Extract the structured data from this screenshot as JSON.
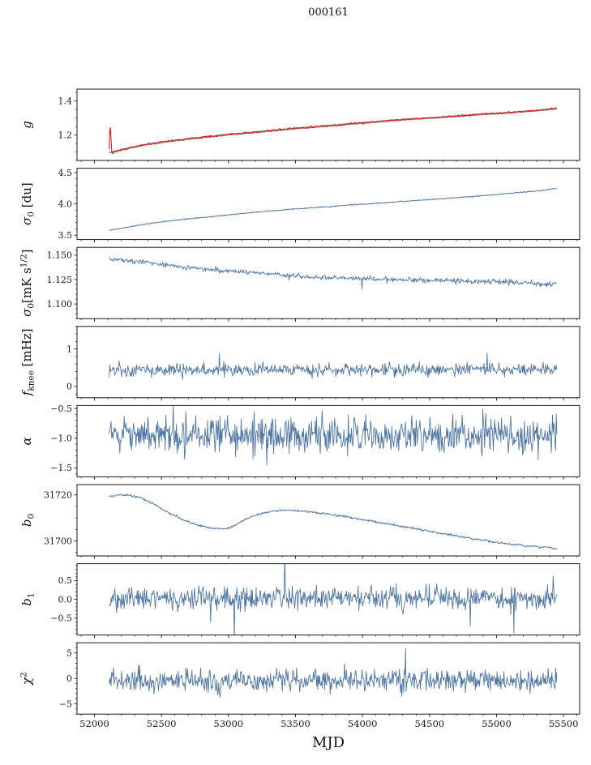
{
  "chart_data": {
    "type": "line",
    "title": "000161",
    "xlabel": "MJD",
    "xlim": [
      51870,
      55620
    ],
    "xticks": [
      52000,
      52500,
      53000,
      53500,
      54000,
      54500,
      55000,
      55500
    ],
    "xtick_labels": [
      "52000",
      "52500",
      "53000",
      "53500",
      "54000",
      "54500",
      "55000",
      "55500"
    ],
    "x_minor_step": 100,
    "x_range_data": [
      52110,
      55450
    ],
    "axis_color": "#1a1a1a",
    "line_color": "#5077a3",
    "panels": [
      {
        "id": "g",
        "ylabel": [
          {
            "t": "g",
            "i": true
          }
        ],
        "ylim": [
          1.05,
          1.47
        ],
        "yticks": [
          1.2,
          1.4
        ],
        "ytick_labels": [
          "1.2",
          "1.4"
        ],
        "yminor_step": 0.05,
        "series": [
          {
            "name": "smoothed-gain",
            "color": "#9a9a9a",
            "width": 2.2,
            "noise": 0.0006,
            "n": 360,
            "seed": 21,
            "trend": [
              [
                52110,
                1.097
              ],
              [
                52200,
                1.113
              ],
              [
                52300,
                1.13
              ],
              [
                52400,
                1.145
              ],
              [
                52500,
                1.157
              ],
              [
                52600,
                1.167
              ],
              [
                52700,
                1.176
              ],
              [
                52800,
                1.185
              ],
              [
                52900,
                1.194
              ],
              [
                53000,
                1.202
              ],
              [
                53100,
                1.209
              ],
              [
                53200,
                1.216
              ],
              [
                53300,
                1.223
              ],
              [
                53400,
                1.231
              ],
              [
                53500,
                1.238
              ],
              [
                53600,
                1.244
              ],
              [
                53700,
                1.251
              ],
              [
                53800,
                1.257
              ],
              [
                53900,
                1.264
              ],
              [
                54000,
                1.271
              ],
              [
                54100,
                1.277
              ],
              [
                54200,
                1.284
              ],
              [
                54300,
                1.29
              ],
              [
                54400,
                1.295
              ],
              [
                54500,
                1.3
              ],
              [
                54600,
                1.305
              ],
              [
                54700,
                1.311
              ],
              [
                54800,
                1.316
              ],
              [
                54900,
                1.322
              ],
              [
                55000,
                1.327
              ],
              [
                55100,
                1.331
              ],
              [
                55200,
                1.338
              ],
              [
                55300,
                1.344
              ],
              [
                55380,
                1.35
              ],
              [
                55450,
                1.356
              ]
            ]
          },
          {
            "name": "gain",
            "color": "#d62020",
            "width": 1.1,
            "noise": 0.0028,
            "n": 720,
            "seed": 22,
            "trend": [
              [
                52110,
                1.118
              ],
              [
                52117,
                1.285
              ],
              [
                52123,
                1.185
              ],
              [
                52130,
                1.096
              ],
              [
                52200,
                1.112
              ],
              [
                52300,
                1.131
              ],
              [
                52400,
                1.146
              ],
              [
                52500,
                1.158
              ],
              [
                52600,
                1.168
              ],
              [
                52700,
                1.177
              ],
              [
                52800,
                1.186
              ],
              [
                52900,
                1.195
              ],
              [
                53000,
                1.203
              ],
              [
                53100,
                1.21
              ],
              [
                53200,
                1.217
              ],
              [
                53300,
                1.224
              ],
              [
                53400,
                1.232
              ],
              [
                53500,
                1.239
              ],
              [
                53600,
                1.245
              ],
              [
                53700,
                1.252
              ],
              [
                53800,
                1.258
              ],
              [
                53900,
                1.265
              ],
              [
                54000,
                1.272
              ],
              [
                54100,
                1.278
              ],
              [
                54200,
                1.285
              ],
              [
                54300,
                1.291
              ],
              [
                54400,
                1.296
              ],
              [
                54500,
                1.301
              ],
              [
                54600,
                1.306
              ],
              [
                54700,
                1.312
              ],
              [
                54800,
                1.317
              ],
              [
                54900,
                1.323
              ],
              [
                55000,
                1.328
              ],
              [
                55100,
                1.332
              ],
              [
                55200,
                1.339
              ],
              [
                55300,
                1.345
              ],
              [
                55380,
                1.351
              ],
              [
                55450,
                1.357
              ]
            ]
          }
        ]
      },
      {
        "id": "sigma0-du",
        "ylabel": [
          {
            "t": "σ",
            "i": true
          },
          {
            "t": "0",
            "pos": "sub"
          },
          {
            "t": " [du]"
          }
        ],
        "ylim": [
          3.43,
          4.57
        ],
        "yticks": [
          3.5,
          4.0,
          4.5
        ],
        "ytick_labels": [
          "3.5",
          "4.0",
          "4.5"
        ],
        "yminor_step": 0.1,
        "series": [
          {
            "name": "sigma0-du",
            "color": "#5077a3",
            "width": 1.0,
            "noise": 0.004,
            "n": 700,
            "seed": 31,
            "trend": [
              [
                52110,
                3.575
              ],
              [
                52250,
                3.63
              ],
              [
                52400,
                3.685
              ],
              [
                52550,
                3.725
              ],
              [
                52700,
                3.76
              ],
              [
                52850,
                3.79
              ],
              [
                53000,
                3.825
              ],
              [
                53150,
                3.855
              ],
              [
                53300,
                3.885
              ],
              [
                53450,
                3.91
              ],
              [
                53600,
                3.935
              ],
              [
                53800,
                3.965
              ],
              [
                54000,
                3.995
              ],
              [
                54200,
                4.025
              ],
              [
                54400,
                4.055
              ],
              [
                54600,
                4.085
              ],
              [
                54800,
                4.115
              ],
              [
                55000,
                4.15
              ],
              [
                55200,
                4.19
              ],
              [
                55320,
                4.21
              ],
              [
                55450,
                4.25
              ]
            ]
          }
        ]
      },
      {
        "id": "sigma0-mks",
        "ylabel": [
          {
            "t": "σ",
            "i": true
          },
          {
            "t": "0",
            "pos": "sub"
          },
          {
            "t": "[mK s"
          },
          {
            "t": "1/2",
            "pos": "sup"
          },
          {
            "t": "]"
          }
        ],
        "ylim": [
          1.085,
          1.158
        ],
        "yticks": [
          1.1,
          1.125,
          1.15
        ],
        "ytick_labels": [
          "1.100",
          "1.125",
          "1.150"
        ],
        "yminor_step": 0.005,
        "series": [
          {
            "name": "sigma0-mks",
            "color": "#5077a3",
            "width": 0.9,
            "noise": 0.0013,
            "n": 720,
            "seed": 41,
            "spike_prob": 0.008,
            "spike_scale": 5,
            "spike_dir": -1,
            "trend": [
              [
                52110,
                1.1465
              ],
              [
                52250,
                1.1445
              ],
              [
                52400,
                1.1425
              ],
              [
                52550,
                1.1395
              ],
              [
                52700,
                1.137
              ],
              [
                52850,
                1.1355
              ],
              [
                53000,
                1.134
              ],
              [
                53150,
                1.1325
              ],
              [
                53300,
                1.131
              ],
              [
                53450,
                1.1295
              ],
              [
                53600,
                1.128
              ],
              [
                53800,
                1.127
              ],
              [
                54000,
                1.1262
              ],
              [
                54200,
                1.1252
              ],
              [
                54400,
                1.1245
              ],
              [
                54600,
                1.1238
              ],
              [
                54800,
                1.1232
              ],
              [
                55000,
                1.1228
              ],
              [
                55200,
                1.1215
              ],
              [
                55350,
                1.1212
              ],
              [
                55450,
                1.1215
              ]
            ]
          }
        ]
      },
      {
        "id": "fknee",
        "ylabel": [
          {
            "t": "f",
            "i": true
          },
          {
            "t": "knee",
            "pos": "sub"
          },
          {
            "t": " [mHz]"
          }
        ],
        "ylim": [
          -0.3,
          1.6
        ],
        "yticks": [
          0,
          1
        ],
        "ytick_labels": [
          "0",
          "1"
        ],
        "yminor_step": 0.2,
        "series": [
          {
            "name": "fknee",
            "color": "#5077a3",
            "width": 0.9,
            "noise": 0.085,
            "n": 720,
            "seed": 51,
            "spike_prob": 0.02,
            "spike_scale": 3.2,
            "spike_dir": 1,
            "trend": [
              [
                52110,
                0.44
              ],
              [
                55450,
                0.44
              ]
            ]
          }
        ]
      },
      {
        "id": "alpha",
        "ylabel": [
          {
            "t": "α",
            "i": true
          }
        ],
        "ylim": [
          -1.65,
          -0.45
        ],
        "yticks": [
          -1.5,
          -1.0,
          -0.5
        ],
        "ytick_labels": [
          "−1.5",
          "−1.0",
          "−0.5"
        ],
        "yminor_step": 0.1,
        "series": [
          {
            "name": "alpha",
            "color": "#5077a3",
            "width": 0.9,
            "noise": 0.155,
            "n": 720,
            "seed": 61,
            "trend": [
              [
                52110,
                -0.95
              ],
              [
                55450,
                -0.95
              ]
            ]
          }
        ]
      },
      {
        "id": "b0",
        "ylabel": [
          {
            "t": "b",
            "i": true
          },
          {
            "t": "0",
            "pos": "sub"
          }
        ],
        "ylim": [
          31693.5,
          31724.5
        ],
        "yticks": [
          31700,
          31720
        ],
        "ytick_labels": [
          "31700",
          "31720"
        ],
        "yminor_step": 5,
        "series": [
          {
            "name": "b0",
            "color": "#5077a3",
            "width": 1.0,
            "noise": 0.22,
            "n": 700,
            "seed": 71,
            "trend": [
              [
                52110,
                31719.3
              ],
              [
                52180,
                31720
              ],
              [
                52260,
                31719.8
              ],
              [
                52330,
                31719
              ],
              [
                52420,
                31716.8
              ],
              [
                52500,
                31714
              ],
              [
                52580,
                31711.5
              ],
              [
                52660,
                31709.3
              ],
              [
                52740,
                31707.5
              ],
              [
                52820,
                31706.3
              ],
              [
                52900,
                31705.5
              ],
              [
                52960,
                31705.3
              ],
              [
                53020,
                31706
              ],
              [
                53100,
                31708.5
              ],
              [
                53180,
                31710.8
              ],
              [
                53260,
                31712.2
              ],
              [
                53340,
                31713
              ],
              [
                53420,
                31713.4
              ],
              [
                53500,
                31713.2
              ],
              [
                53600,
                31712.7
              ],
              [
                53700,
                31712
              ],
              [
                53800,
                31711.2
              ],
              [
                53900,
                31710.3
              ],
              [
                54000,
                31709.3
              ],
              [
                54100,
                31708.3
              ],
              [
                54200,
                31707.3
              ],
              [
                54300,
                31706.3
              ],
              [
                54400,
                31705.2
              ],
              [
                54500,
                31704.2
              ],
              [
                54600,
                31703.2
              ],
              [
                54700,
                31702.2
              ],
              [
                54800,
                31701.2
              ],
              [
                54900,
                31700.4
              ],
              [
                55000,
                31699.4
              ],
              [
                55060,
                31698.8
              ],
              [
                55120,
                31698.3
              ],
              [
                55170,
                31698.6
              ],
              [
                55220,
                31697.6
              ],
              [
                55270,
                31698
              ],
              [
                55320,
                31697.2
              ],
              [
                55380,
                31697.5
              ],
              [
                55450,
                31696.6
              ]
            ]
          }
        ]
      },
      {
        "id": "b1",
        "ylabel": [
          {
            "t": "b",
            "i": true
          },
          {
            "t": "1",
            "pos": "sub"
          }
        ],
        "ylim": [
          -0.95,
          0.95
        ],
        "yticks": [
          -0.5,
          0.0,
          0.5
        ],
        "ytick_labels": [
          "−0.5",
          "0.0",
          "0.5"
        ],
        "yminor_step": 0.1,
        "series": [
          {
            "name": "b1",
            "color": "#5077a3",
            "width": 0.9,
            "noise": 0.15,
            "n": 720,
            "seed": 81,
            "spike_prob": 0.02,
            "spike_scale": 3.5,
            "trend": [
              [
                52110,
                0.02
              ],
              [
                55450,
                0.02
              ]
            ]
          }
        ]
      },
      {
        "id": "chi2",
        "ylabel": [
          {
            "t": "χ",
            "i": true
          },
          {
            "t": "2",
            "pos": "sup"
          }
        ],
        "ylim": [
          -7,
          7
        ],
        "yticks": [
          -5,
          0,
          5
        ],
        "ytick_labels": [
          "−5",
          "0",
          "5"
        ],
        "yminor_step": 1,
        "series": [
          {
            "name": "chi2",
            "color": "#5077a3",
            "width": 0.9,
            "noise": 1.05,
            "n": 720,
            "seed": 91,
            "spike_prob": 0.012,
            "spike_scale": 2.5,
            "trend": [
              [
                52110,
                -0.4
              ],
              [
                55450,
                -0.4
              ]
            ]
          }
        ]
      }
    ]
  }
}
